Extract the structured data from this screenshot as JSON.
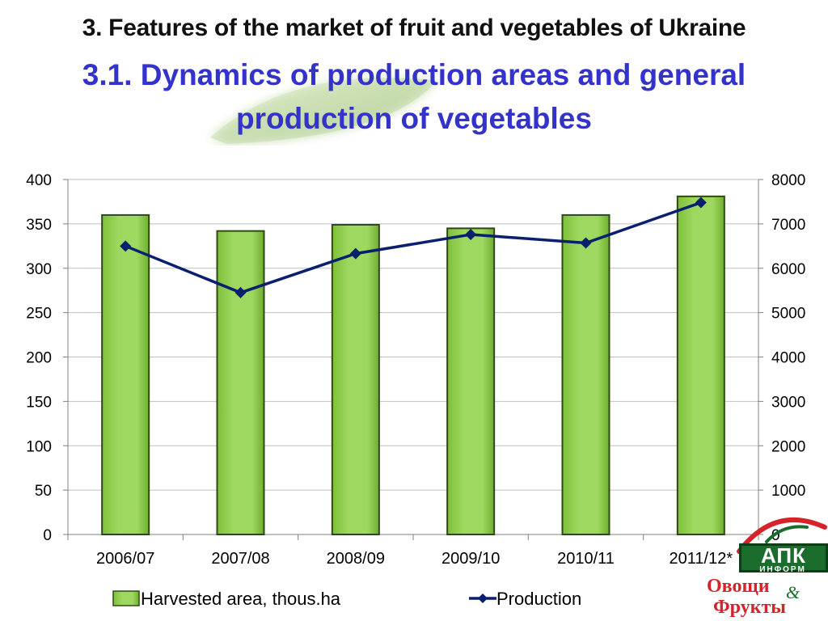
{
  "slide": {
    "title": "3. Features of the market of fruit and vegetables of Ukraine",
    "subtitle_line1": "3.1. Dynamics of production areas and general",
    "subtitle_line2": "production of vegetables"
  },
  "logo": {
    "apk": "АПК",
    "inform": "ИНФОРМ",
    "line1": "Овощи",
    "amp": "&",
    "line2": "Фрукты"
  },
  "chart_data": {
    "type": "bar",
    "categories": [
      "2006/07",
      "2007/08",
      "2008/09",
      "2009/10",
      "2010/11",
      "2011/12*"
    ],
    "series": [
      {
        "name": "Harvested area, thous.ha",
        "type": "bar",
        "axis": "left",
        "values": [
          360,
          342,
          349,
          345,
          360,
          381
        ],
        "color": "#92d050"
      },
      {
        "name": "Production",
        "type": "line",
        "axis": "right",
        "values": [
          6500,
          5450,
          6330,
          6760,
          6570,
          7480
        ],
        "color": "#0a1f6e"
      }
    ],
    "y_left": {
      "min": 0,
      "max": 400,
      "step": 50,
      "ticks": [
        "0",
        "50",
        "100",
        "150",
        "200",
        "250",
        "300",
        "350",
        "400"
      ]
    },
    "y_right": {
      "min": 0,
      "max": 8000,
      "step": 1000,
      "ticks": [
        "0",
        "1000",
        "2000",
        "3000",
        "4000",
        "5000",
        "6000",
        "7000",
        "8000"
      ]
    },
    "grid": true,
    "legend_position": "bottom"
  }
}
